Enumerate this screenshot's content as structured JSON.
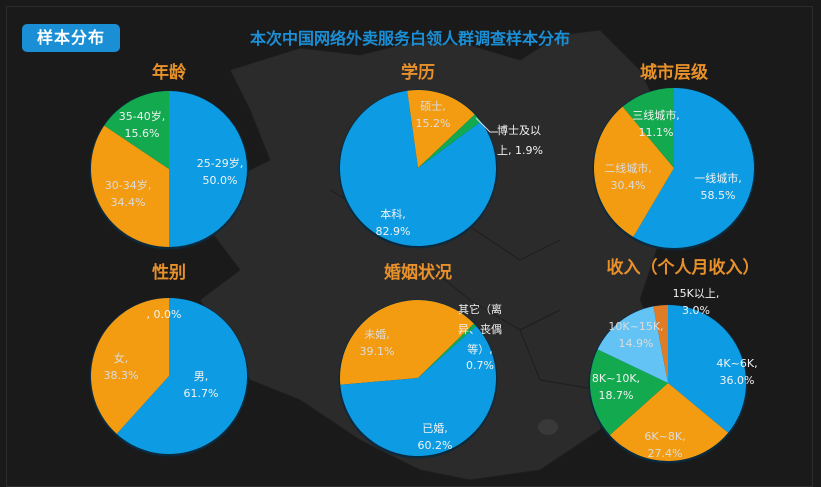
{
  "header": {
    "badge": "样本分布",
    "title": "本次中国网络外卖服务白领人群调查样本分布"
  },
  "colors": {
    "background": "#1b1a1a",
    "map": "#2c2b2b",
    "blue": "#0d9ce3",
    "orange": "#f39c12",
    "green": "#12a94f",
    "light_blue": "#63c3f5",
    "dark_orange": "#e07b26",
    "title_orange": "#e8912a",
    "badge_blue": "#1a8fd6"
  },
  "chart_data": [
    {
      "type": "pie",
      "title": "年龄",
      "categories": [
        "25-29岁",
        "30-34岁",
        "35-40岁"
      ],
      "values": [
        50.0,
        34.4,
        15.6
      ],
      "labels": [
        "25-29岁,\n50.0%",
        "30-34岁,\n34.4%",
        "35-40岁,\n15.6%"
      ]
    },
    {
      "type": "pie",
      "title": "学历",
      "categories": [
        "本科",
        "硕士",
        "博士及以上"
      ],
      "values": [
        82.9,
        15.2,
        1.9
      ],
      "labels": [
        "本科,\n82.9%",
        "硕士,\n15.2%",
        "博士及以上, 1.9%"
      ]
    },
    {
      "type": "pie",
      "title": "城市层级",
      "categories": [
        "一线城市",
        "二线城市",
        "三线城市"
      ],
      "values": [
        58.5,
        30.4,
        11.1
      ],
      "labels": [
        "一线城市,\n58.5%",
        "二线城市,\n30.4%",
        "三线城市,\n11.1%"
      ]
    },
    {
      "type": "pie",
      "title": "性别",
      "categories": [
        "男",
        "女",
        ""
      ],
      "values": [
        61.7,
        38.3,
        0.0
      ],
      "labels": [
        "男,\n61.7%",
        "女,\n38.3%",
        ", 0.0%"
      ]
    },
    {
      "type": "pie",
      "title": "婚姻状况",
      "categories": [
        "已婚",
        "未婚",
        "其它（离异、丧偶等）"
      ],
      "values": [
        60.2,
        39.1,
        0.7
      ],
      "labels": [
        "已婚,\n60.2%",
        "未婚,\n39.1%",
        "其它（离异、丧偶等）, 0.7%"
      ]
    },
    {
      "type": "pie",
      "title": "收入（个人月收入）",
      "categories": [
        "4K~6K",
        "6K~8K",
        "8K~10K",
        "10K~15K",
        "15K以上"
      ],
      "values": [
        36.0,
        27.4,
        18.7,
        14.9,
        3.0
      ],
      "labels": [
        "4K~6K,\n36.0%",
        "6K~8K,\n27.4%",
        "8K~10K,\n18.7%",
        "10K~15K,\n14.9%",
        "15K以上,\n3.0%"
      ]
    }
  ],
  "charts": {
    "age": {
      "title": "年龄",
      "l0a": "25-29岁,",
      "l0b": "50.0%",
      "l1a": "30-34岁,",
      "l1b": "34.4%",
      "l2a": "35-40岁,",
      "l2b": "15.6%"
    },
    "edu": {
      "title": "学历",
      "l0a": "本科,",
      "l0b": "82.9%",
      "l1a": "硕士,",
      "l1b": "15.2%",
      "l2a": "博士及以",
      "l2b": "上, 1.9%"
    },
    "city": {
      "title": "城市层级",
      "l0a": "一线城市,",
      "l0b": "58.5%",
      "l1a": "二线城市,",
      "l1b": "30.4%",
      "l2a": "三线城市,",
      "l2b": "11.1%"
    },
    "gender": {
      "title": "性别",
      "l0a": "男,",
      "l0b": "61.7%",
      "l1a": "女,",
      "l1b": "38.3%",
      "l2a": ", 0.0%"
    },
    "marital": {
      "title": "婚姻状况",
      "l0a": "已婚,",
      "l0b": "60.2%",
      "l1a": "未婚,",
      "l1b": "39.1%",
      "l2a": "其它（离",
      "l2b": "异、丧偶",
      "l2c": "等）,",
      "l2d": "0.7%"
    },
    "income": {
      "title": "收入（个人月收入）",
      "l0a": "4K~6K,",
      "l0b": "36.0%",
      "l1a": "6K~8K,",
      "l1b": "27.4%",
      "l2a": "8K~10K,",
      "l2b": "18.7%",
      "l3a": "10K~15K,",
      "l3b": "14.9%",
      "l4a": "15K以上,",
      "l4b": "3.0%"
    }
  }
}
